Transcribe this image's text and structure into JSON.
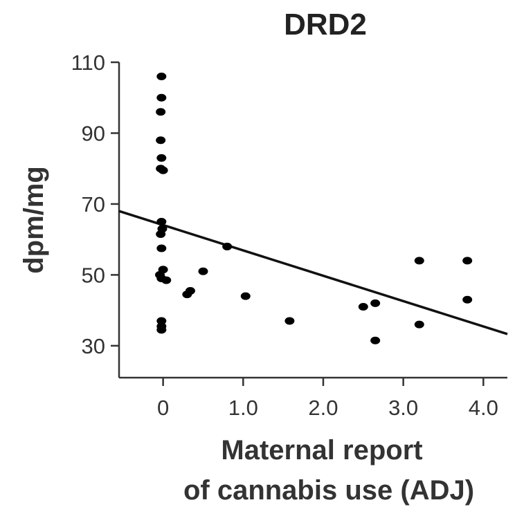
{
  "chart_data": {
    "type": "scatter",
    "title": "DRD2",
    "ylabel": "dpm/mg",
    "xlabel_lines": [
      "Maternal report",
      "of cannabis use (ADJ)"
    ],
    "xlim": [
      -0.55,
      4.3
    ],
    "ylim": [
      21,
      110
    ],
    "x_ticks": [
      0,
      1.0,
      2.0,
      3.0,
      4.0
    ],
    "x_tick_labels": [
      "0",
      "1.0",
      "2.0",
      "3.0",
      "4.0"
    ],
    "y_ticks": [
      30,
      50,
      70,
      90,
      110
    ],
    "y_tick_labels": [
      "30",
      "50",
      "70",
      "90",
      "110"
    ],
    "grid": false,
    "points": [
      {
        "x": -0.02,
        "y": 106
      },
      {
        "x": -0.02,
        "y": 100
      },
      {
        "x": -0.03,
        "y": 96
      },
      {
        "x": -0.03,
        "y": 88
      },
      {
        "x": -0.02,
        "y": 83
      },
      {
        "x": -0.03,
        "y": 80
      },
      {
        "x": 0.0,
        "y": 79.5
      },
      {
        "x": -0.02,
        "y": 65
      },
      {
        "x": -0.01,
        "y": 63
      },
      {
        "x": -0.03,
        "y": 61.5
      },
      {
        "x": -0.02,
        "y": 57.5
      },
      {
        "x": 0.0,
        "y": 51.5
      },
      {
        "x": -0.04,
        "y": 50
      },
      {
        "x": -0.02,
        "y": 49
      },
      {
        "x": 0.04,
        "y": 48.5
      },
      {
        "x": -0.02,
        "y": 37
      },
      {
        "x": -0.02,
        "y": 35.5
      },
      {
        "x": -0.02,
        "y": 34.5
      },
      {
        "x": 0.3,
        "y": 44.5
      },
      {
        "x": 0.34,
        "y": 45.5
      },
      {
        "x": 0.5,
        "y": 51
      },
      {
        "x": 0.8,
        "y": 58
      },
      {
        "x": 1.03,
        "y": 44
      },
      {
        "x": 1.58,
        "y": 37
      },
      {
        "x": 2.5,
        "y": 41
      },
      {
        "x": 2.65,
        "y": 42
      },
      {
        "x": 2.65,
        "y": 31.5
      },
      {
        "x": 3.2,
        "y": 54
      },
      {
        "x": 3.2,
        "y": 36
      },
      {
        "x": 3.8,
        "y": 54
      },
      {
        "x": 3.8,
        "y": 43
      }
    ],
    "regression_line": {
      "x": [
        -0.55,
        4.3
      ],
      "y": [
        68,
        33.3
      ]
    },
    "colors": {
      "points": "#000000",
      "line": "#111111",
      "axes": "#333333"
    }
  }
}
